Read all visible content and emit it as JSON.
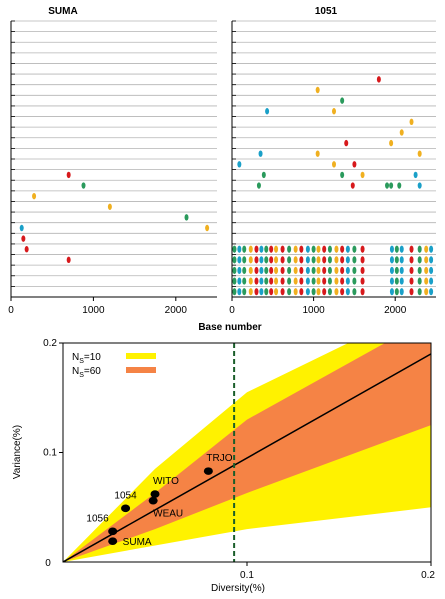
{
  "chart_data": [
    {
      "type": "scatter",
      "panel": "top-left",
      "title": "SUMA",
      "xlim": [
        0,
        2500
      ],
      "xticks": [
        "0",
        "1000",
        "2000"
      ],
      "xtick_values": [
        0,
        1000,
        2000
      ],
      "rows": 26,
      "points": [
        {
          "x": 700,
          "row": 4,
          "color": "#d7191c"
        },
        {
          "x": 880,
          "row": 3,
          "color": "#2a9a5c"
        },
        {
          "x": 280,
          "row": 2,
          "color": "#f0b020"
        },
        {
          "x": 1200,
          "row": 1,
          "color": "#f0b020"
        },
        {
          "x": 2130,
          "row": 0,
          "color": "#2a9a5c"
        },
        {
          "x": 130,
          "row": -1,
          "color": "#1aa0c8"
        },
        {
          "x": 2380,
          "row": -1,
          "color": "#f0b020"
        },
        {
          "x": 150,
          "row": -2,
          "color": "#d7191c"
        },
        {
          "x": 190,
          "row": -3,
          "color": "#d7191c"
        },
        {
          "x": 700,
          "row": -4,
          "color": "#d7191c"
        }
      ]
    },
    {
      "type": "scatter",
      "panel": "top-right",
      "title": "1051",
      "xlabel": "Base number",
      "xlim": [
        0,
        2500
      ],
      "xticks": [
        "0",
        "1000",
        "2000"
      ],
      "xtick_values": [
        0,
        1000,
        2000
      ],
      "rows": 26,
      "scattered_points": [
        {
          "x": 1800,
          "row": 13,
          "color": "#d7191c"
        },
        {
          "x": 1050,
          "row": 12,
          "color": "#f0b020"
        },
        {
          "x": 1350,
          "row": 11,
          "color": "#2a9a5c"
        },
        {
          "x": 1250,
          "row": 10,
          "color": "#f0b020"
        },
        {
          "x": 430,
          "row": 10,
          "color": "#1aa0c8"
        },
        {
          "x": 2200,
          "row": 9,
          "color": "#f0b020"
        },
        {
          "x": 2080,
          "row": 8,
          "color": "#f0b020"
        },
        {
          "x": 1400,
          "row": 7,
          "color": "#d7191c"
        },
        {
          "x": 1950,
          "row": 7,
          "color": "#f0b020"
        },
        {
          "x": 350,
          "row": 6,
          "color": "#1aa0c8"
        },
        {
          "x": 1050,
          "row": 6,
          "color": "#f0b020"
        },
        {
          "x": 2300,
          "row": 6,
          "color": "#f0b020"
        },
        {
          "x": 90,
          "row": 5,
          "color": "#1aa0c8"
        },
        {
          "x": 1250,
          "row": 5,
          "color": "#f0b020"
        },
        {
          "x": 1500,
          "row": 5,
          "color": "#d7191c"
        },
        {
          "x": 390,
          "row": 4,
          "color": "#2a9a5c"
        },
        {
          "x": 1350,
          "row": 4,
          "color": "#2a9a5c"
        },
        {
          "x": 1600,
          "row": 4,
          "color": "#f0b020"
        },
        {
          "x": 2250,
          "row": 4,
          "color": "#1aa0c8"
        },
        {
          "x": 330,
          "row": 3,
          "color": "#2a9a5c"
        },
        {
          "x": 1480,
          "row": 3,
          "color": "#d7191c"
        },
        {
          "x": 1900,
          "row": 3,
          "color": "#2a9a5c"
        },
        {
          "x": 1950,
          "row": 3,
          "color": "#2a9a5c"
        },
        {
          "x": 2050,
          "row": 3,
          "color": "#2a9a5c"
        },
        {
          "x": 2300,
          "row": 3,
          "color": "#1aa0c8"
        }
      ],
      "dense_columns": [
        {
          "x": 30,
          "color": "#2a9a5c"
        },
        {
          "x": 90,
          "color": "#1aa0c8"
        },
        {
          "x": 150,
          "color": "#2a9a5c"
        },
        {
          "x": 230,
          "color": "#f0b020"
        },
        {
          "x": 300,
          "color": "#d7191c"
        },
        {
          "x": 360,
          "color": "#1aa0c8"
        },
        {
          "x": 420,
          "color": "#2a9a5c"
        },
        {
          "x": 480,
          "color": "#d7191c"
        },
        {
          "x": 540,
          "color": "#f0b020"
        },
        {
          "x": 620,
          "color": "#d7191c"
        },
        {
          "x": 700,
          "color": "#2a9a5c"
        },
        {
          "x": 780,
          "color": "#f0b020"
        },
        {
          "x": 850,
          "color": "#d7191c"
        },
        {
          "x": 930,
          "color": "#1aa0c8"
        },
        {
          "x": 1000,
          "color": "#2a9a5c"
        },
        {
          "x": 1060,
          "color": "#f0b020"
        },
        {
          "x": 1130,
          "color": "#d7191c"
        },
        {
          "x": 1200,
          "color": "#2a9a5c"
        },
        {
          "x": 1280,
          "color": "#f0b020"
        },
        {
          "x": 1350,
          "color": "#d7191c"
        },
        {
          "x": 1420,
          "color": "#1aa0c8"
        },
        {
          "x": 1500,
          "color": "#2a9a5c"
        },
        {
          "x": 1600,
          "color": "#d7191c"
        },
        {
          "x": 1960,
          "color": "#1aa0c8"
        },
        {
          "x": 2020,
          "color": "#2a9a5c"
        },
        {
          "x": 2080,
          "color": "#1aa0c8"
        },
        {
          "x": 2200,
          "color": "#d7191c"
        },
        {
          "x": 2300,
          "color": "#2a9a5c"
        },
        {
          "x": 2380,
          "color": "#f0b020"
        },
        {
          "x": 2440,
          "color": "#1aa0c8"
        }
      ],
      "dense_rows": 5
    },
    {
      "type": "scatter",
      "panel": "bottom",
      "xlabel": "Diversity(%)",
      "ylabel": "Variance(%)",
      "xlim": [
        0,
        0.2
      ],
      "ylim": [
        0,
        0.2
      ],
      "xticks": [
        "0.1",
        "0.2"
      ],
      "xtick_values": [
        0.1,
        0.2
      ],
      "yticks": [
        "0",
        "0.1",
        "0.2"
      ],
      "ytick_values": [
        0,
        0.1,
        0.2
      ],
      "origin_label": "0",
      "legend": [
        {
          "prefix": "N",
          "sub": "S",
          "suffix": "=10",
          "color": "#fff200"
        },
        {
          "prefix": "N",
          "sub": "S",
          "suffix": "=60",
          "color": "#f58345"
        }
      ],
      "dashed_x": 0.093,
      "mean_line": [
        [
          0,
          0
        ],
        [
          0.2,
          0.19
        ]
      ],
      "band_outer": {
        "upper": [
          [
            0,
            0
          ],
          [
            0.05,
            0.085
          ],
          [
            0.1,
            0.155
          ],
          [
            0.155,
            0.2
          ]
        ],
        "lower": [
          [
            0,
            0
          ],
          [
            0.1,
            0.03
          ],
          [
            0.2,
            0.05
          ]
        ]
      },
      "band_inner": {
        "upper": [
          [
            0,
            0
          ],
          [
            0.05,
            0.063
          ],
          [
            0.1,
            0.13
          ],
          [
            0.175,
            0.2
          ]
        ],
        "lower": [
          [
            0,
            0
          ],
          [
            0.05,
            0.03
          ],
          [
            0.1,
            0.063
          ],
          [
            0.2,
            0.125
          ]
        ]
      },
      "points": [
        {
          "label": "SUMA",
          "x": 0.027,
          "y": 0.019
        },
        {
          "label": "1056",
          "x": 0.027,
          "y": 0.028
        },
        {
          "label": "1054",
          "x": 0.034,
          "y": 0.049
        },
        {
          "label": "WEAU",
          "x": 0.049,
          "y": 0.056
        },
        {
          "label": "WITO",
          "x": 0.05,
          "y": 0.062
        },
        {
          "label": "TRJO",
          "x": 0.079,
          "y": 0.083
        }
      ]
    }
  ]
}
